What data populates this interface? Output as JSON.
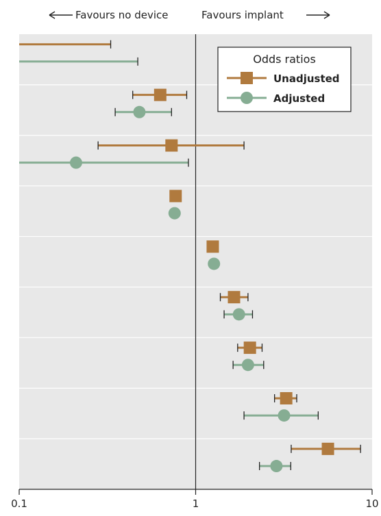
{
  "header": {
    "left_label": "Favours no device",
    "right_label": "Favours implant"
  },
  "legend": {
    "title": "Odds ratios",
    "unadjusted_label": "Unadjusted",
    "adjusted_label": "Adjusted"
  },
  "colors": {
    "unadjusted": "#b07a3e",
    "adjusted": "#86ad93",
    "plot_bg": "#e8e8e8",
    "gridline": "#ffffff",
    "text": "#222222"
  },
  "chart_data": {
    "type": "forest",
    "x_scale": "log",
    "xlim": [
      0.1,
      10
    ],
    "x_ticks": [
      "0.1",
      "1",
      "10"
    ],
    "reference_line": 1,
    "legend_position": "top-right",
    "grid": "horizontal row separators",
    "series": [
      {
        "name": "Unadjusted",
        "marker": "square",
        "rows": [
          {
            "or": null,
            "lo": null,
            "hi": 0.33,
            "lo_clipped": true
          },
          {
            "or": 0.63,
            "lo": 0.44,
            "hi": 0.89
          },
          {
            "or": 0.73,
            "lo": 0.28,
            "hi": 1.88
          },
          {
            "or": 0.77,
            "lo": null,
            "hi": null
          },
          {
            "or": 1.25,
            "lo": null,
            "hi": null
          },
          {
            "or": 1.65,
            "lo": 1.38,
            "hi": 1.98
          },
          {
            "or": 2.03,
            "lo": 1.73,
            "hi": 2.38
          },
          {
            "or": 3.26,
            "lo": 2.8,
            "hi": 3.74
          },
          {
            "or": 5.62,
            "lo": 3.48,
            "hi": 8.6
          }
        ]
      },
      {
        "name": "Adjusted",
        "marker": "circle",
        "rows": [
          {
            "or": null,
            "lo": null,
            "hi": 0.47,
            "lo_clipped": true
          },
          {
            "or": 0.48,
            "lo": 0.35,
            "hi": 0.73
          },
          {
            "or": 0.21,
            "lo": 0.1,
            "hi": 0.91,
            "lo_clipped": true
          },
          {
            "or": 0.76,
            "lo": null,
            "hi": null
          },
          {
            "or": 1.27,
            "lo": null,
            "hi": null
          },
          {
            "or": 1.76,
            "lo": 1.45,
            "hi": 2.1
          },
          {
            "or": 1.98,
            "lo": 1.63,
            "hi": 2.43
          },
          {
            "or": 3.17,
            "lo": 1.88,
            "hi": 4.95
          },
          {
            "or": 2.87,
            "lo": 2.3,
            "hi": 3.46
          }
        ]
      }
    ]
  }
}
